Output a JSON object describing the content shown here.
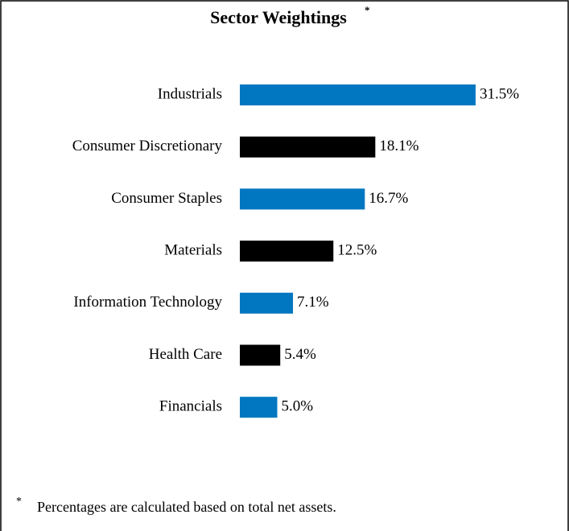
{
  "chart_data": {
    "type": "bar",
    "orientation": "horizontal",
    "title": "Sector Weightings",
    "title_marker": "*",
    "categories": [
      "Industrials",
      "Consumer Discretionary",
      "Consumer Staples",
      "Materials",
      "Information Technology",
      "Health Care",
      "Financials"
    ],
    "values": [
      31.5,
      18.1,
      16.7,
      12.5,
      7.1,
      5.4,
      5.0
    ],
    "value_labels": [
      "31.5%",
      "18.1%",
      "16.7%",
      "12.5%",
      "7.1%",
      "5.4%",
      "5.0%"
    ],
    "colors": [
      "#0077c0",
      "#000000",
      "#0077c0",
      "#000000",
      "#0077c0",
      "#000000",
      "#0077c0"
    ],
    "footnote": {
      "marker": "*",
      "text": "Percentages are calculated based on total net assets."
    }
  }
}
